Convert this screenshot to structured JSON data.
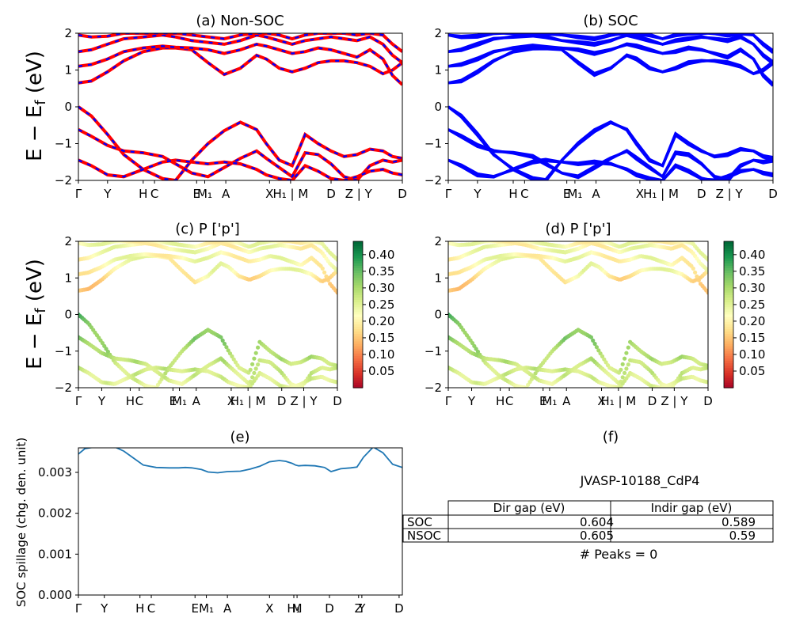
{
  "figure": {
    "type": "band-structure-figure"
  },
  "colors": {
    "nonsoc_line": "#ff0000",
    "nonsoc_dash": "#0000ff",
    "soc_line": "#0000ff",
    "spillage_line": "#1f77b4",
    "colormap": [
      "#a50026",
      "#d73027",
      "#f46d43",
      "#fdae61",
      "#fee08b",
      "#ffffbf",
      "#d9ef8b",
      "#a6d96a",
      "#66bd63",
      "#1a9850",
      "#006837"
    ]
  },
  "chart_data": [
    {
      "id": "a",
      "type": "line",
      "title": "(a) Non-SOC",
      "ylabel": "$E - E_f$ (eV)",
      "ylim": [
        -2,
        2
      ],
      "yticks": [
        "2",
        "1",
        "0",
        "−1",
        "−2"
      ],
      "xticks": [
        "Γ",
        "Y",
        "H",
        "C",
        "E",
        "M₁",
        "A",
        "X",
        "H₁ | M",
        "D",
        "Z | Y",
        "D"
      ],
      "bands": {
        "x": [
          0,
          0.04,
          0.09,
          0.14,
          0.2,
          0.26,
          0.3,
          0.35,
          0.4,
          0.45,
          0.5,
          0.55,
          0.58,
          0.62,
          0.66,
          0.7,
          0.74,
          0.78,
          0.82,
          0.86,
          0.9,
          0.94,
          0.97,
          1.0
        ],
        "valence": [
          [
            0.0,
            -0.25,
            -0.75,
            -1.3,
            -1.7,
            -1.95,
            -2.0,
            -1.45,
            -1.0,
            -0.65,
            -0.42,
            -0.62,
            -1.0,
            -1.45,
            -1.6,
            -0.75,
            -1.0,
            -1.2,
            -1.35,
            -1.3,
            -1.15,
            -1.2,
            -1.35,
            -1.4
          ],
          [
            -0.62,
            -0.8,
            -1.05,
            -1.2,
            -1.25,
            -1.35,
            -1.55,
            -1.8,
            -1.9,
            -1.65,
            -1.4,
            -1.2,
            -1.4,
            -1.65,
            -1.9,
            -1.25,
            -1.3,
            -1.55,
            -1.9,
            -2.0,
            -1.6,
            -1.45,
            -1.5,
            -1.45
          ],
          [
            -1.45,
            -1.6,
            -1.85,
            -1.9,
            -1.7,
            -1.5,
            -1.45,
            -1.5,
            -1.55,
            -1.5,
            -1.55,
            -1.7,
            -1.85,
            -1.95,
            -2.0,
            -1.6,
            -1.75,
            -1.95,
            -2.0,
            -1.9,
            -1.75,
            -1.7,
            -1.8,
            -1.85
          ]
        ],
        "conduction": [
          [
            0.65,
            0.7,
            0.95,
            1.25,
            1.5,
            1.6,
            1.6,
            1.55,
            1.2,
            0.88,
            1.05,
            1.4,
            1.3,
            1.05,
            0.95,
            1.05,
            1.2,
            1.25,
            1.25,
            1.2,
            1.1,
            0.9,
            1.0,
            1.2
          ],
          [
            1.1,
            1.15,
            1.3,
            1.5,
            1.6,
            1.65,
            1.62,
            1.6,
            1.55,
            1.45,
            1.55,
            1.7,
            1.65,
            1.55,
            1.45,
            1.5,
            1.6,
            1.55,
            1.45,
            1.35,
            1.55,
            1.3,
            0.85,
            0.6
          ],
          [
            1.5,
            1.55,
            1.7,
            1.85,
            1.9,
            1.95,
            1.9,
            1.8,
            1.75,
            1.7,
            1.8,
            1.95,
            1.9,
            1.8,
            1.7,
            1.8,
            1.85,
            1.9,
            1.85,
            1.8,
            1.9,
            1.7,
            1.4,
            1.2
          ],
          [
            1.95,
            1.9,
            1.92,
            2.0,
            2.0,
            2.0,
            2.0,
            1.95,
            1.9,
            1.85,
            1.95,
            2.0,
            2.0,
            1.95,
            1.85,
            1.95,
            2.0,
            2.0,
            2.0,
            1.95,
            2.0,
            1.95,
            1.7,
            1.5
          ]
        ]
      }
    },
    {
      "id": "b",
      "type": "line",
      "title": "(b) SOC",
      "ylim": [
        -2,
        2
      ],
      "yticks": [
        "2",
        "1",
        "0",
        "−1",
        "−2"
      ],
      "xticks": [
        "Γ",
        "Y",
        "H",
        "C",
        "E",
        "M₁",
        "A",
        "X",
        "H₁ | M",
        "D",
        "Z | Y",
        "D"
      ],
      "bands_ref": "a",
      "soc_split": 0.06
    },
    {
      "id": "c",
      "type": "scatter",
      "title": "(c)  P ['p']",
      "ylabel": "$E - E_f$ (eV)",
      "ylim": [
        -2,
        2
      ],
      "yticks": [
        "2",
        "1",
        "0",
        "−1",
        "−2"
      ],
      "xticks": [
        "Γ",
        "Y",
        "H",
        "C",
        "E",
        "M₁",
        "A",
        "X",
        "H₁ | M",
        "D",
        "Z | Y",
        "D"
      ],
      "bands_ref": "a",
      "colorbar": {
        "range": [
          0.0,
          0.44
        ],
        "ticks": [
          "0.40",
          "0.35",
          "0.30",
          "0.25",
          "0.20",
          "0.15",
          "0.10",
          "0.05"
        ]
      }
    },
    {
      "id": "d",
      "type": "scatter",
      "title": "(d) P ['p']",
      "ylim": [
        -2,
        2
      ],
      "yticks": [
        "2",
        "1",
        "0",
        "−1",
        "−2"
      ],
      "xticks": [
        "Γ",
        "Y",
        "H",
        "C",
        "E",
        "M₁",
        "A",
        "X",
        "H₁ | M",
        "D",
        "Z | Y",
        "D"
      ],
      "bands_ref": "a",
      "colorbar": {
        "range": [
          0.0,
          0.44
        ],
        "ticks": [
          "0.40",
          "0.35",
          "0.30",
          "0.25",
          "0.20",
          "0.15",
          "0.10",
          "0.05"
        ]
      }
    },
    {
      "id": "e",
      "type": "line",
      "title": "(e)",
      "ylabel": "SOC spillage (chg. den. unit)",
      "ylim": [
        0,
        0.0036
      ],
      "yticks": [
        "0.003",
        "0.002",
        "0.001",
        "0.000"
      ],
      "xticks": [
        "Γ",
        "Y",
        "H",
        "C",
        "E",
        "M₁",
        "A",
        "X",
        "H₁",
        "M",
        "D",
        "Z",
        "Y",
        "D"
      ],
      "x": [
        0.0,
        0.02,
        0.05,
        0.08,
        0.09,
        0.11,
        0.14,
        0.17,
        0.2,
        0.24,
        0.28,
        0.31,
        0.33,
        0.35,
        0.38,
        0.4,
        0.43,
        0.46,
        0.5,
        0.53,
        0.56,
        0.59,
        0.62,
        0.64,
        0.66,
        0.67,
        0.68,
        0.7,
        0.73,
        0.76,
        0.78,
        0.81,
        0.84,
        0.86,
        0.87,
        0.88,
        0.91,
        0.94,
        0.97,
        1.0
      ],
      "values": [
        0.00345,
        0.00358,
        0.00362,
        0.00363,
        0.00364,
        0.00363,
        0.00352,
        0.00335,
        0.00318,
        0.00312,
        0.00311,
        0.00311,
        0.00312,
        0.00311,
        0.00307,
        0.00301,
        0.00299,
        0.00302,
        0.00303,
        0.00308,
        0.00315,
        0.00326,
        0.00329,
        0.00327,
        0.00322,
        0.00318,
        0.00316,
        0.00317,
        0.00316,
        0.00312,
        0.00302,
        0.00309,
        0.00311,
        0.00313,
        0.00325,
        0.00337,
        0.00362,
        0.00348,
        0.0032,
        0.00312
      ]
    }
  ],
  "panel_f": {
    "title": "(f)",
    "material": "JVASP-10188_CdP4",
    "table": {
      "columns": [
        "Dir gap (eV)",
        "Indir gap (eV)"
      ],
      "rows": [
        {
          "label": "SOC",
          "dir": "0.604",
          "indir": "0.589"
        },
        {
          "label": "NSOC",
          "dir": "0.605",
          "indir": "0.59"
        }
      ]
    },
    "peaks": "# Peaks = 0"
  }
}
